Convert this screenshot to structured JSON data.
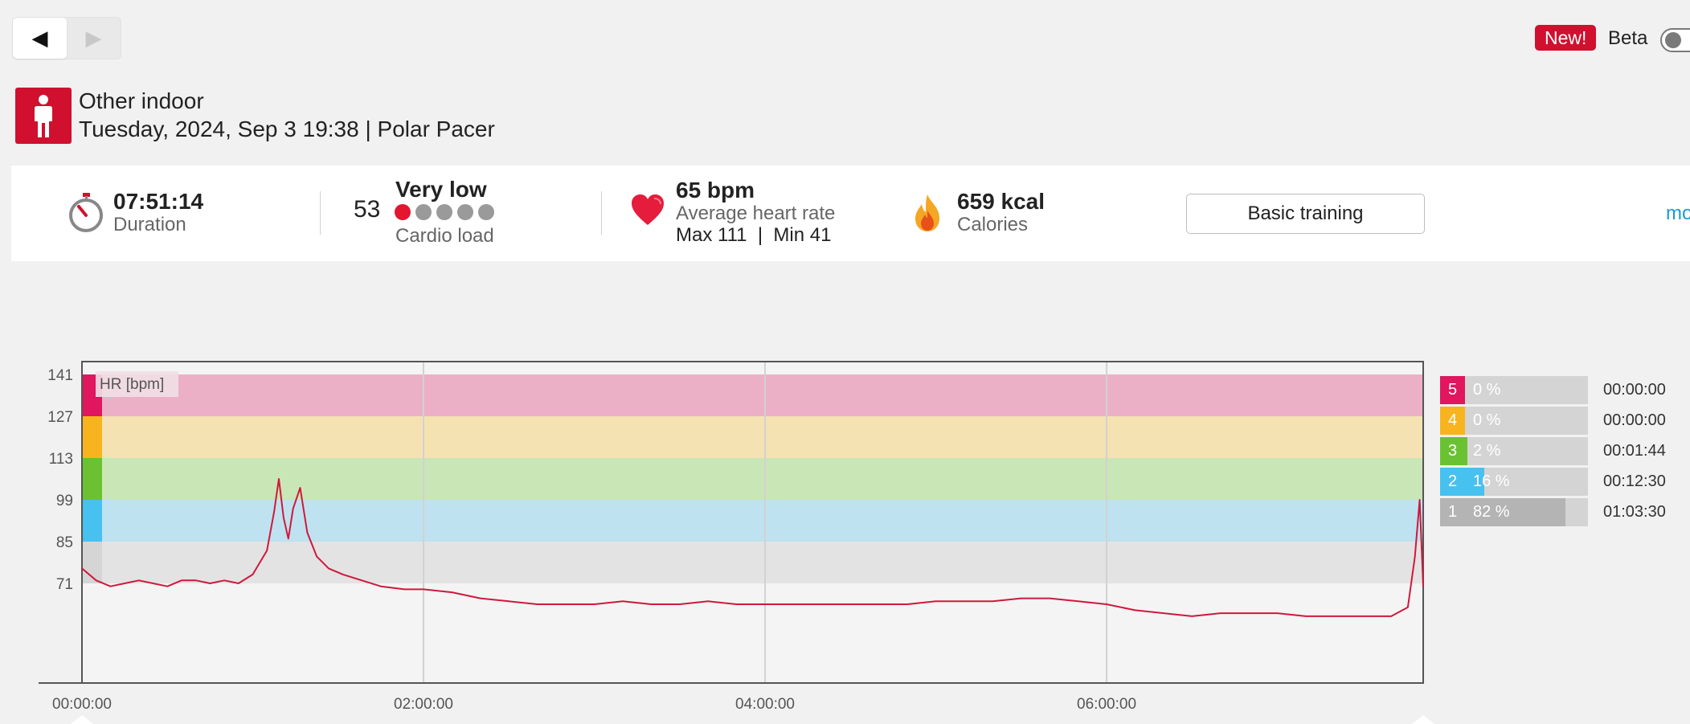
{
  "nav": {
    "prev_icon": "◀",
    "next_icon": "▶"
  },
  "header": {
    "new_badge": "New!",
    "beta_label": "Beta"
  },
  "session": {
    "sport_icon": "person-standing-icon",
    "sport": "Other indoor",
    "info": "Tuesday, 2024, Sep 3 19:38 | Polar Pacer"
  },
  "summary": {
    "duration_value": "07:51:14",
    "duration_label": "Duration",
    "cardio_value": "53",
    "cardio_level": "Very low",
    "cardio_label": "Cardio load",
    "cardio_dots": 1,
    "hr_value": "65 bpm",
    "hr_label": "Average heart rate",
    "hr_minmax": "Max 111  |  Min 41",
    "calories_value": "659 kcal",
    "calories_label": "Calories",
    "training_button": "Basic training",
    "more_link": "mo"
  },
  "chart_data": {
    "type": "line",
    "series_label": "HR [bpm]",
    "x_ticks": [
      "00:00:00",
      "02:00:00",
      "04:00:00",
      "06:00:00"
    ],
    "y_ticks": [
      141,
      127,
      113,
      99,
      85,
      71
    ],
    "duration_seconds": 28274,
    "zones": [
      {
        "zone": 5,
        "from": 127,
        "to": 141,
        "color": "#ecb0c6",
        "marker": "#e0165e"
      },
      {
        "zone": 4,
        "from": 113,
        "to": 127,
        "color": "#f4e2b2",
        "marker": "#f7b41e"
      },
      {
        "zone": 3,
        "from": 99,
        "to": 113,
        "color": "#c9e6b6",
        "marker": "#6ac233"
      },
      {
        "zone": 2,
        "from": 85,
        "to": 99,
        "color": "#bee2f0",
        "marker": "#47c1ef"
      },
      {
        "zone": 1,
        "from": 71,
        "to": 85,
        "color": "#e3e3e3",
        "marker": "#d5d5d5"
      }
    ],
    "hr_points": [
      [
        0,
        76
      ],
      [
        300,
        72
      ],
      [
        600,
        70
      ],
      [
        900,
        71
      ],
      [
        1200,
        72
      ],
      [
        1500,
        71
      ],
      [
        1800,
        70
      ],
      [
        2100,
        72
      ],
      [
        2400,
        72
      ],
      [
        2700,
        71
      ],
      [
        3000,
        72
      ],
      [
        3300,
        71
      ],
      [
        3600,
        74
      ],
      [
        3900,
        82
      ],
      [
        4050,
        95
      ],
      [
        4150,
        106
      ],
      [
        4250,
        93
      ],
      [
        4350,
        86
      ],
      [
        4450,
        96
      ],
      [
        4600,
        103
      ],
      [
        4750,
        88
      ],
      [
        4950,
        80
      ],
      [
        5200,
        76
      ],
      [
        5500,
        74
      ],
      [
        5900,
        72
      ],
      [
        6300,
        70
      ],
      [
        6800,
        69
      ],
      [
        7200,
        69
      ],
      [
        7800,
        68
      ],
      [
        8400,
        66
      ],
      [
        9000,
        65
      ],
      [
        9600,
        64
      ],
      [
        10200,
        64
      ],
      [
        10800,
        64
      ],
      [
        11400,
        65
      ],
      [
        12000,
        64
      ],
      [
        12600,
        64
      ],
      [
        13200,
        65
      ],
      [
        13800,
        64
      ],
      [
        14400,
        64
      ],
      [
        15000,
        64
      ],
      [
        15600,
        64
      ],
      [
        16200,
        64
      ],
      [
        16800,
        64
      ],
      [
        17400,
        64
      ],
      [
        18000,
        65
      ],
      [
        18600,
        65
      ],
      [
        19200,
        65
      ],
      [
        19800,
        66
      ],
      [
        20400,
        66
      ],
      [
        21000,
        65
      ],
      [
        21600,
        64
      ],
      [
        22200,
        62
      ],
      [
        22800,
        61
      ],
      [
        23400,
        60
      ],
      [
        24000,
        61
      ],
      [
        24600,
        61
      ],
      [
        25200,
        61
      ],
      [
        25800,
        60
      ],
      [
        26400,
        60
      ],
      [
        27000,
        60
      ],
      [
        27600,
        60
      ],
      [
        27950,
        63
      ],
      [
        28100,
        80
      ],
      [
        28200,
        99
      ],
      [
        28274,
        70
      ]
    ],
    "zone_stats": [
      {
        "zone": "5",
        "percent": "0 %",
        "fraction": 0.0,
        "time": "00:00:00",
        "color": "#e0165e"
      },
      {
        "zone": "4",
        "percent": "0 %",
        "fraction": 0.0,
        "time": "00:00:00",
        "color": "#f7b41e"
      },
      {
        "zone": "3",
        "percent": "2 %",
        "fraction": 0.02,
        "time": "00:01:44",
        "color": "#6ac233"
      },
      {
        "zone": "2",
        "percent": "16 %",
        "fraction": 0.16,
        "time": "00:12:30",
        "color": "#47c1ef"
      },
      {
        "zone": "1",
        "percent": "82 %",
        "fraction": 0.82,
        "time": "01:03:30",
        "color": "#b4b4b4"
      }
    ]
  }
}
